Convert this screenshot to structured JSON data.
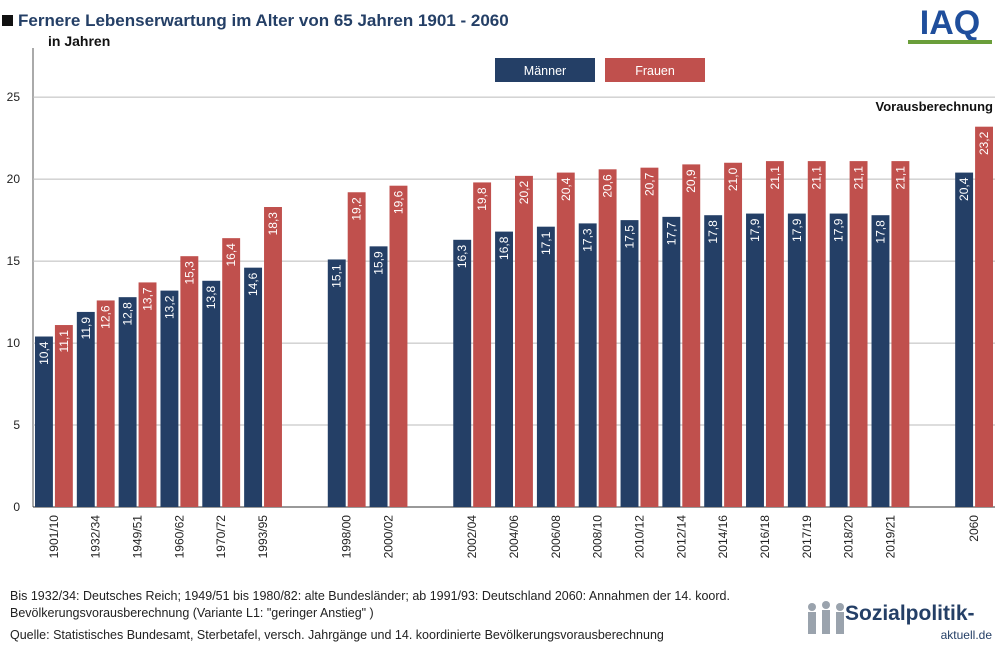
{
  "chart_data": {
    "type": "bar",
    "title": "Fernere Lebenserwartung im Alter von 65 Jahren 1901 - 2060",
    "subtitle": "in Jahren",
    "annotation": "Vorausberechnung",
    "categories": [
      "1901/10",
      "1932/34",
      "1949/51",
      "1960/62",
      "1970/72",
      "1993/95",
      null,
      "1998/00",
      "2000/02",
      null,
      "2002/04",
      "2004/06",
      "2006/08",
      "2008/10",
      "2010/12",
      "2012/14",
      "2014/16",
      "2016/18",
      "2017/19",
      "2018/20",
      "2019/21",
      null,
      "2060"
    ],
    "series": [
      {
        "name": "Männer",
        "color": "#243f66",
        "values": [
          10.4,
          11.9,
          12.8,
          13.2,
          13.8,
          14.6,
          null,
          15.1,
          15.9,
          null,
          16.3,
          16.8,
          17.1,
          17.3,
          17.5,
          17.7,
          17.8,
          17.9,
          17.9,
          17.9,
          17.8,
          null,
          20.4
        ],
        "value_labels": [
          "10,4",
          "11,9",
          "12,8",
          "13,2",
          "13,8",
          "14,6",
          null,
          "15,1",
          "15,9",
          null,
          "16,3",
          "16,8",
          "17,1",
          "17,3",
          "17,5",
          "17,7",
          "17,8",
          "17,9",
          "17,9",
          "17,9",
          "17,8",
          null,
          "20,4"
        ]
      },
      {
        "name": "Frauen",
        "color": "#c0504d",
        "values": [
          11.1,
          12.6,
          13.7,
          15.3,
          16.4,
          18.3,
          null,
          19.2,
          19.6,
          null,
          19.8,
          20.2,
          20.4,
          20.6,
          20.7,
          20.9,
          21.0,
          21.1,
          21.1,
          21.1,
          21.1,
          null,
          23.2
        ],
        "value_labels": [
          "11,1",
          "12,6",
          "13,7",
          "15,3",
          "16,4",
          "18,3",
          null,
          "19,2",
          "19,6",
          null,
          "19,8",
          "20,2",
          "20,4",
          "20,6",
          "20,7",
          "20,9",
          "21,0",
          "21,1",
          "21,1",
          "21,1",
          "21,1",
          null,
          "23,2"
        ]
      }
    ],
    "ylim": [
      0,
      28
    ],
    "yticks": [
      0,
      5,
      10,
      15,
      20,
      25
    ],
    "grid": true,
    "notes": [
      "Bis 1932/34: Deutsches Reich; 1949/51 bis 1980/82: alte Bundesländer; ab 1991/93: Deutschland 2060: Annahmen der 14. koord.",
      "Bevölkerungsvorausberechnung (Variante L1: \"geringer Anstieg\" )"
    ],
    "source": "Quelle: Statistisches Bundesamt, Sterbetafel, versch. Jahrgänge und 14. koordinierte Bevölkerungsvorausberechnung",
    "logo": "IAQ",
    "brand": "Sozialpolitik-",
    "brand_domain": "aktuell.de"
  }
}
